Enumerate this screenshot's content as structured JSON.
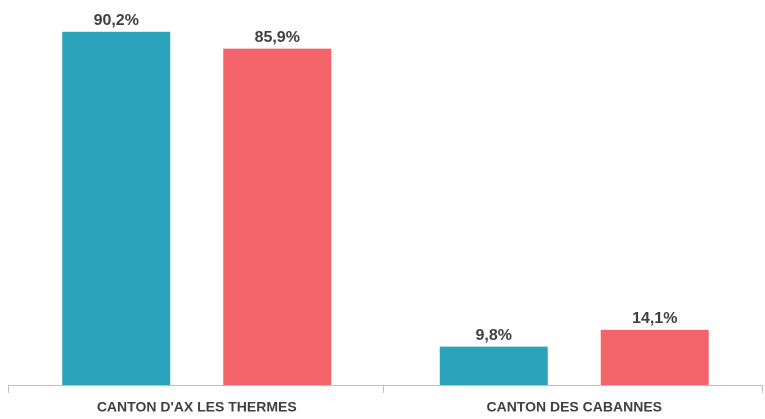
{
  "chart_data": {
    "type": "bar",
    "categories": [
      "CANTON D'AX LES THERMES",
      "CANTON DES CABANNES"
    ],
    "series": [
      {
        "color": "#2ba3bb",
        "values": [
          90.2,
          9.8
        ],
        "value_labels": [
          "90,2%",
          "9,8%"
        ]
      },
      {
        "color": "#f2636a",
        "values": [
          85.9,
          14.1
        ],
        "value_labels": [
          "85,9%",
          "14,1%"
        ]
      }
    ],
    "ylim": [
      0,
      95
    ]
  }
}
